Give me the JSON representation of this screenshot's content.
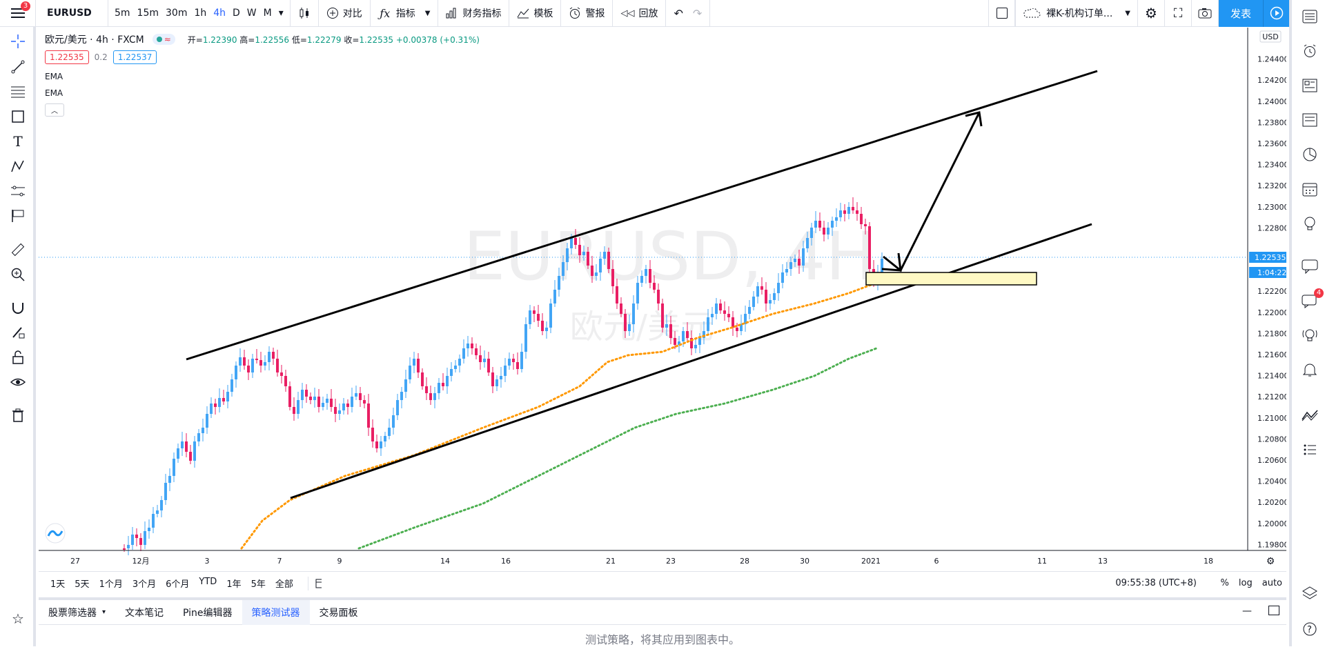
{
  "toolbar": {
    "menu_badge": "3",
    "symbol": "EURUSD",
    "intervals": [
      "5m",
      "15m",
      "30m",
      "1h",
      "4h",
      "D",
      "W",
      "M"
    ],
    "active_interval": "4h",
    "compare_label": "对比",
    "indicators_label": "指标",
    "financials_label": "财务指标",
    "templates_label": "模板",
    "alert_label": "警报",
    "replay_label": "回放",
    "layout_name": "裸K-机构订单...",
    "publish_label": "发表"
  },
  "legend": {
    "pair": "欧元/美元 · 4h · FXCM",
    "ohlc": {
      "open_label": "开",
      "open": "1.22390",
      "high_label": "高",
      "high": "1.22556",
      "low_label": "低",
      "low": "1.22279",
      "close_label": "收",
      "close": "1.22535",
      "change": "+0.00378 (+0.31%)"
    },
    "bid": "1.22535",
    "spread": "0.2",
    "ask": "1.22537",
    "indicators": [
      "EMA",
      "EMA"
    ]
  },
  "watermark": {
    "symbol": "EURUSD, 4H",
    "name": "欧元/美元"
  },
  "price_axis": {
    "currency": "USD",
    "ticks": [
      "1.24400",
      "1.24200",
      "1.24000",
      "1.23800",
      "1.23600",
      "1.23400",
      "1.23200",
      "1.23000",
      "1.22800",
      "1.22200",
      "1.22000",
      "1.21800",
      "1.21600",
      "1.21400",
      "1.21200",
      "1.21000",
      "1.20800",
      "1.20600",
      "1.20400",
      "1.20200",
      "1.20000",
      "1.19800"
    ],
    "last_price": "1.22535",
    "countdown": "1:04:22"
  },
  "time_axis": {
    "ticks": [
      "27",
      "12月",
      "3",
      "7",
      "9",
      "14",
      "16",
      "21",
      "23",
      "28",
      "30",
      "2021",
      "6",
      "11",
      "13",
      "18"
    ]
  },
  "bottom_bar": {
    "ranges": [
      "1天",
      "5天",
      "1个月",
      "3个月",
      "6个月",
      "YTD",
      "1年",
      "5年",
      "全部"
    ],
    "clock": "09:55:38 (UTC+8)",
    "scale_percent": "%",
    "scale_log": "log",
    "scale_auto": "auto"
  },
  "panel": {
    "tabs": [
      "股票筛选器",
      "文本笔记",
      "Pine编辑器",
      "策略测试器",
      "交易面板"
    ],
    "active_tab": "策略测试器",
    "message": "测试策略，将其应用到图表中。"
  },
  "rightbar": {
    "chat_badge": "4"
  },
  "colors": {
    "up": "#42a5f5",
    "down": "#e91e63",
    "ema_fast": "#ff9800",
    "ema_slow": "#4caf50",
    "accent": "#2196f3",
    "zone": "#fff9c4"
  }
}
